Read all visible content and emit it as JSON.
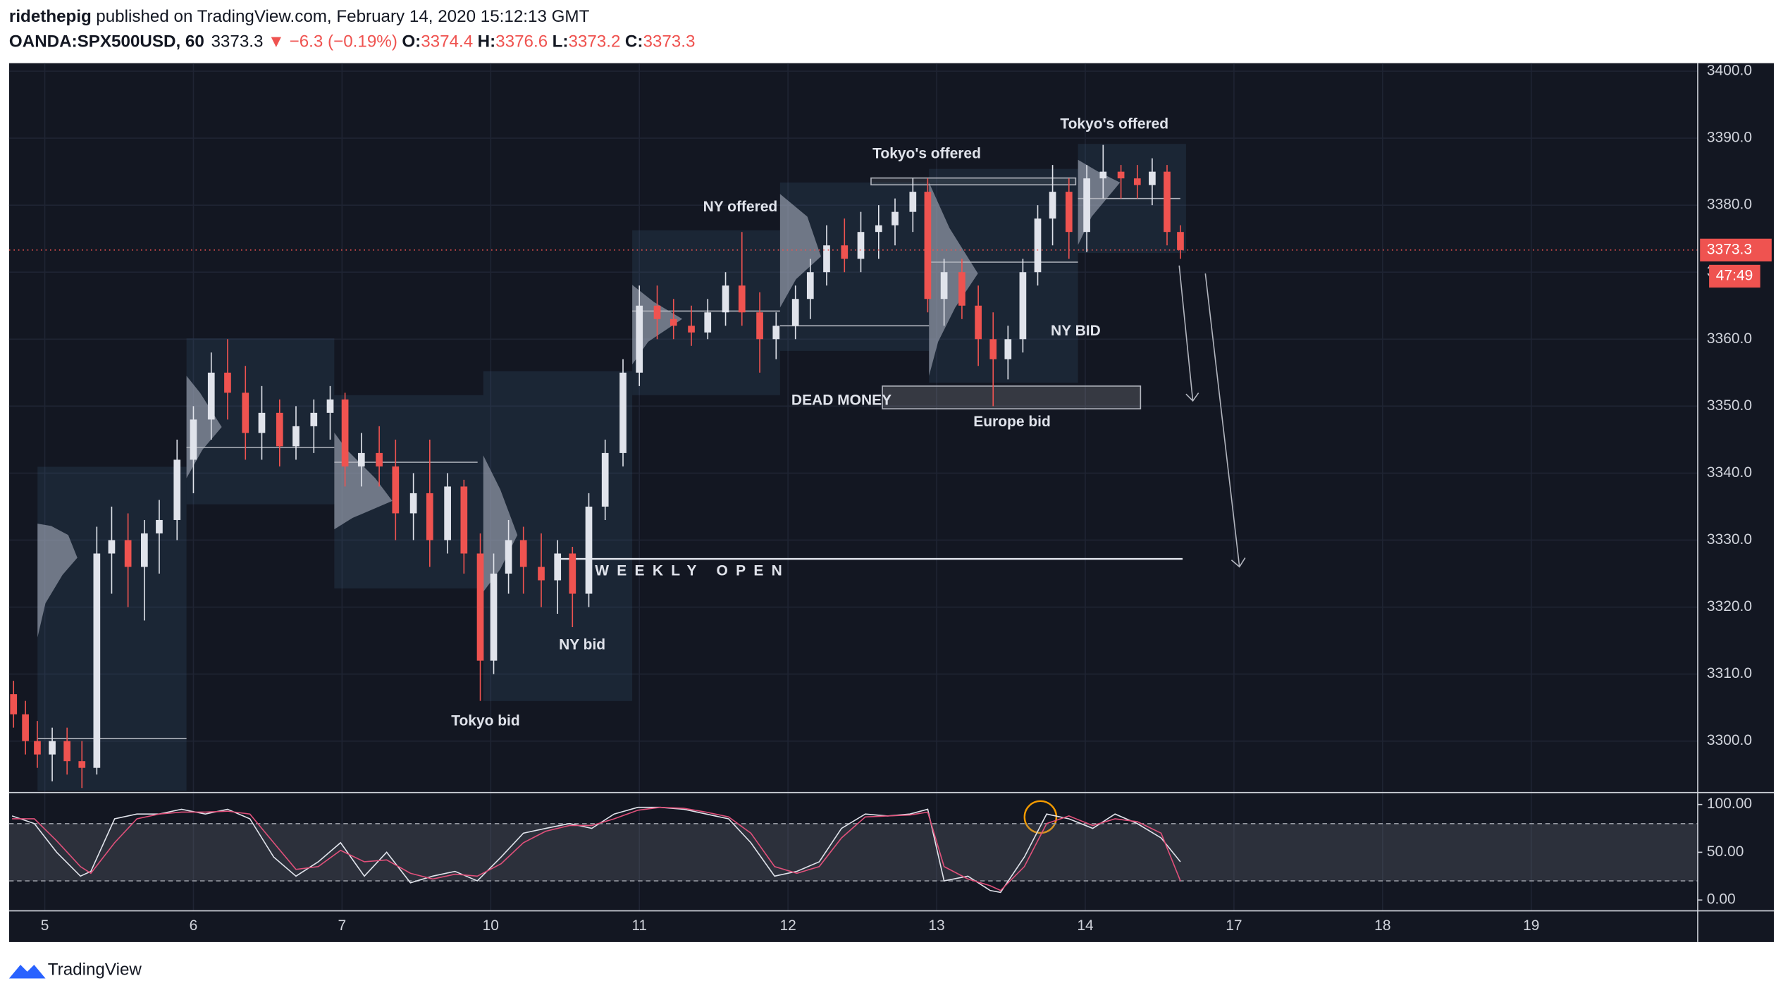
{
  "header": {
    "author": "ridethepig",
    "published": "published on TradingView.com, February 14, 2020 15:12:13 GMT",
    "symbol": "OANDA:SPX500USD, 60",
    "last": "3373.3",
    "change": "▼ −6.3 (−0.19%)",
    "open_label": "O:",
    "open": "3374.4",
    "high_label": "H:",
    "high": "3376.6",
    "low_label": "L:",
    "low": "3373.2",
    "close_label": "C:",
    "close": "3373.3"
  },
  "footer": {
    "brand": "TradingView"
  },
  "chart_data": [
    {
      "type": "candlestick",
      "x": [
        -0.21,
        -0.13,
        -0.05,
        0.05,
        0.15,
        0.25,
        0.35,
        0.45,
        0.56,
        0.67,
        0.77,
        0.89,
        1.0,
        1.12,
        1.23,
        1.35,
        1.46,
        1.58,
        1.69,
        1.81,
        1.92,
        2.02,
        2.13,
        2.25,
        2.36,
        2.48,
        2.59,
        2.71,
        2.82,
        2.93,
        3.02,
        3.12,
        3.22,
        3.34,
        3.45,
        3.55,
        3.66,
        3.77,
        3.89,
        4.0,
        4.12,
        4.23,
        4.35,
        4.46,
        4.58,
        4.69,
        4.81,
        4.92,
        5.05,
        5.15,
        5.26,
        5.38,
        5.49,
        5.61,
        5.72,
        5.84,
        5.94,
        6.05,
        6.17,
        6.28,
        6.38,
        6.48,
        6.58,
        6.68,
        6.78,
        6.89,
        7.01,
        7.12,
        7.24,
        7.35,
        7.45,
        7.55,
        7.64
      ],
      "open": [
        3307,
        3304,
        3300,
        3298,
        3300,
        3297,
        3296,
        3328,
        3330,
        3326,
        3331,
        3333,
        3342,
        3348,
        3355,
        3352,
        3346,
        3349,
        3344,
        3347,
        3349,
        3351,
        3341,
        3343,
        3341,
        3334,
        3337,
        3330,
        3338,
        3328,
        3312,
        3325,
        3330,
        3326,
        3324,
        3328,
        3322,
        3335,
        3343,
        3355,
        3365,
        3363,
        3362,
        3361,
        3364,
        3368,
        3364,
        3360,
        3362,
        3366,
        3370,
        3374,
        3372,
        3376,
        3377,
        3379,
        3382,
        3366,
        3370,
        3365,
        3360,
        3357,
        3360,
        3370,
        3378,
        3382,
        3376,
        3384,
        3385,
        3384,
        3383,
        3385,
        3376
      ],
      "high": [
        3309,
        3306,
        3303,
        3302,
        3302,
        3300,
        3332,
        3335,
        3334,
        3333,
        3336,
        3345,
        3350,
        3358,
        3360,
        3356,
        3353,
        3351,
        3350,
        3351,
        3353,
        3352,
        3346,
        3347,
        3345,
        3340,
        3345,
        3340,
        3339,
        3331,
        3328,
        3333,
        3332,
        3331,
        3330,
        3329,
        3337,
        3345,
        3357,
        3368,
        3368,
        3366,
        3365,
        3366,
        3370,
        3376,
        3367,
        3364,
        3368,
        3372,
        3377,
        3378,
        3379,
        3380,
        3381,
        3384,
        3384,
        3372,
        3372,
        3368,
        3364,
        3362,
        3372,
        3380,
        3386,
        3384,
        3386,
        3389,
        3386,
        3386,
        3387,
        3386,
        3377
      ],
      "low": [
        3302,
        3298,
        3296,
        3294,
        3295,
        3293,
        3295,
        3322,
        3320,
        3318,
        3325,
        3330,
        3337,
        3345,
        3348,
        3342,
        3342,
        3341,
        3342,
        3343,
        3345,
        3338,
        3338,
        3338,
        3330,
        3330,
        3326,
        3328,
        3325,
        3306,
        3310,
        3322,
        3322,
        3320,
        3319,
        3317,
        3320,
        3333,
        3341,
        3353,
        3360,
        3360,
        3359,
        3360,
        3362,
        3362,
        3355,
        3357,
        3360,
        3363,
        3368,
        3370,
        3370,
        3372,
        3374,
        3376,
        3364,
        3362,
        3363,
        3356,
        3350,
        3354,
        3358,
        3368,
        3374,
        3372,
        3373,
        3381,
        3381,
        3381,
        3380,
        3374,
        3372
      ],
      "close": [
        3304,
        3300,
        3298,
        3300,
        3297,
        3296,
        3328,
        3330,
        3326,
        3331,
        3333,
        3342,
        3348,
        3355,
        3352,
        3346,
        3349,
        3344,
        3347,
        3349,
        3351,
        3341,
        3343,
        3341,
        3334,
        3337,
        3330,
        3338,
        3328,
        3312,
        3325,
        3330,
        3326,
        3324,
        3328,
        3322,
        3335,
        3343,
        3355,
        3365,
        3363,
        3362,
        3361,
        3364,
        3368,
        3364,
        3360,
        3362,
        3366,
        3370,
        3374,
        3372,
        3376,
        3377,
        3379,
        3382,
        3366,
        3370,
        3365,
        3360,
        3357,
        3360,
        3370,
        3378,
        3382,
        3376,
        3384,
        3385,
        3384,
        3383,
        3385,
        3376,
        3373.3
      ],
      "up_color": "#e0e3eb",
      "down_color": "#ef5350",
      "xlim": [
        -0.24,
        11.12
      ],
      "xticks": [
        {
          "value": 0,
          "label": "5"
        },
        {
          "value": 1,
          "label": "6"
        },
        {
          "value": 2,
          "label": "7"
        },
        {
          "value": 3,
          "label": "10"
        },
        {
          "value": 4,
          "label": "11"
        },
        {
          "value": 5,
          "label": "12"
        },
        {
          "value": 6,
          "label": "13"
        },
        {
          "value": 7,
          "label": "14"
        },
        {
          "value": 8,
          "label": "17"
        },
        {
          "value": 9,
          "label": "18"
        },
        {
          "value": 10,
          "label": "19"
        }
      ],
      "ylim": [
        3292.4,
        3401.2
      ],
      "yticks": [
        {
          "value": 3300,
          "label": "3300.0"
        },
        {
          "value": 3310,
          "label": "3310.0"
        },
        {
          "value": 3320,
          "label": "3320.0"
        },
        {
          "value": 3330,
          "label": "3330.0"
        },
        {
          "value": 3340,
          "label": "3340.0"
        },
        {
          "value": 3350,
          "label": "3350.0"
        },
        {
          "value": 3360,
          "label": "3360.0"
        },
        {
          "value": 3370,
          "label": "3370.0"
        },
        {
          "value": 3380,
          "label": "3380.0"
        },
        {
          "value": 3390,
          "label": "3390.0"
        },
        {
          "value": 3400,
          "label": "3400.0"
        }
      ],
      "grid": true,
      "last_price": 3373.3,
      "last_price_label": "3373.3",
      "countdown": "47:49",
      "annotations": [
        "NY offered",
        "Tokyo's offered",
        "Tokyo's offered",
        "NY BID",
        "DEAD MONEY",
        "Europe bid",
        "NY bid",
        "Tokyo bid",
        "WEEKLY OPEN"
      ]
    },
    {
      "type": "line",
      "x": [
        -0.22,
        -0.07,
        0.08,
        0.24,
        0.31,
        0.47,
        0.62,
        0.77,
        0.92,
        1.08,
        1.23,
        1.38,
        1.54,
        1.69,
        1.84,
        1.99,
        2.15,
        2.3,
        2.46,
        2.61,
        2.76,
        2.91,
        3.07,
        3.22,
        3.37,
        3.53,
        3.68,
        3.83,
        3.99,
        4.14,
        4.3,
        4.45,
        4.6,
        4.75,
        4.91,
        5.06,
        5.21,
        5.36,
        5.52,
        5.67,
        5.82,
        5.94,
        6.05,
        6.21,
        6.36,
        6.43,
        6.59,
        6.74,
        6.89,
        7.05,
        7.2,
        7.35,
        7.51,
        7.64
      ],
      "series": [
        {
          "color": "#e0e3eb",
          "values": [
            88,
            80,
            50,
            25,
            30,
            85,
            90,
            90,
            95,
            90,
            95,
            85,
            45,
            25,
            40,
            60,
            25,
            50,
            18,
            25,
            30,
            20,
            45,
            70,
            75,
            80,
            75,
            90,
            97,
            97,
            95,
            90,
            85,
            60,
            25,
            30,
            40,
            75,
            90,
            88,
            90,
            95,
            20,
            25,
            10,
            8,
            45,
            90,
            85,
            75,
            90,
            80,
            65,
            40
          ]
        },
        {
          "color": "#e0507a",
          "values": [
            85,
            85,
            62,
            35,
            28,
            60,
            85,
            90,
            92,
            92,
            93,
            90,
            60,
            32,
            35,
            52,
            40,
            42,
            28,
            22,
            27,
            25,
            38,
            60,
            72,
            78,
            78,
            85,
            94,
            97,
            96,
            92,
            87,
            70,
            35,
            28,
            35,
            65,
            87,
            88,
            89,
            92,
            35,
            22,
            15,
            10,
            35,
            80,
            88,
            78,
            85,
            82,
            70,
            20
          ]
        }
      ],
      "xlim": [
        -0.24,
        11.12
      ],
      "ylim": [
        -10.7,
        111.9
      ],
      "yticks": [
        {
          "value": 0,
          "label": "0.00"
        },
        {
          "value": 50,
          "label": "50.00"
        },
        {
          "value": 100,
          "label": "100.00"
        }
      ],
      "bands": [
        20,
        80
      ]
    }
  ]
}
